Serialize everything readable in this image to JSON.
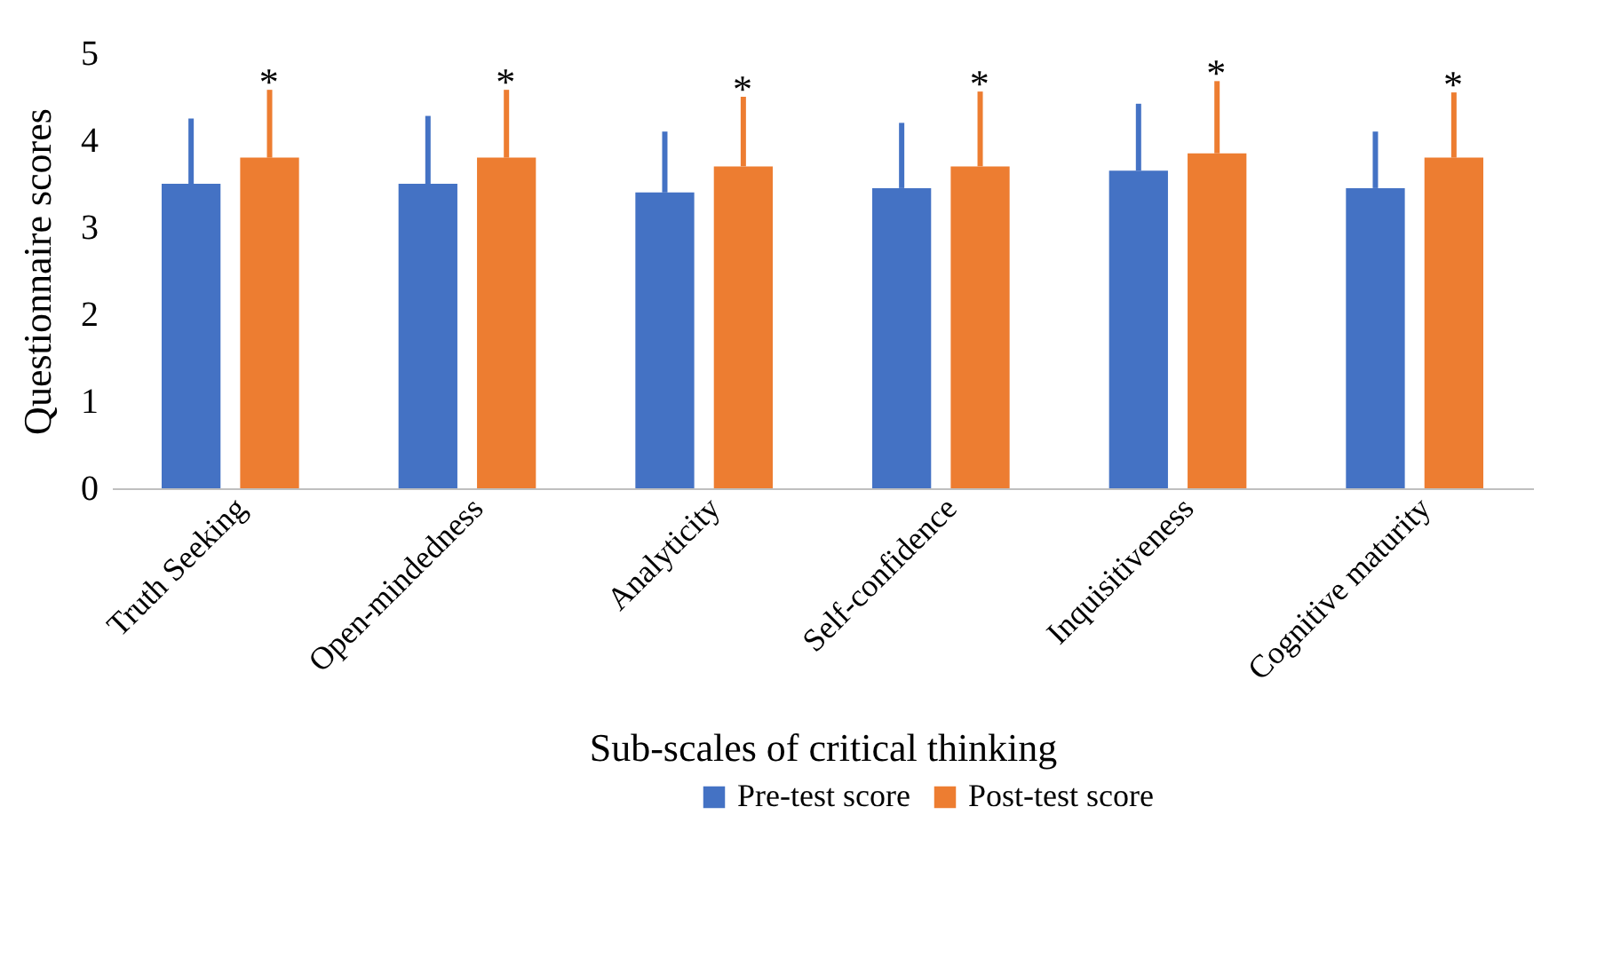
{
  "chart_data": {
    "type": "bar",
    "xlabel": "Sub-scales of critical thinking",
    "ylabel": "Questionnaire  scores",
    "categories": [
      "Truth Seeking",
      "Open-mindedness",
      "Analyticity",
      "Self-confidence",
      "Inquisitiveness",
      "Cognitive maturity"
    ],
    "series": [
      {
        "name": "Pre-test score",
        "color": "#4472c4",
        "values": [
          3.5,
          3.5,
          3.4,
          3.45,
          3.65,
          3.45
        ],
        "errors": [
          [
            3.5,
            4.25
          ],
          [
            3.5,
            4.28
          ],
          [
            3.4,
            4.1
          ],
          [
            3.45,
            4.2
          ],
          [
            3.65,
            4.42
          ],
          [
            3.45,
            4.1
          ]
        ]
      },
      {
        "name": "Post-test score",
        "color": "#ed7d31",
        "values": [
          3.8,
          3.8,
          3.7,
          3.7,
          3.85,
          3.8
        ],
        "errors": [
          [
            3.8,
            4.58
          ],
          [
            3.8,
            4.58
          ],
          [
            3.7,
            4.5
          ],
          [
            3.7,
            4.56
          ],
          [
            3.85,
            4.68
          ],
          [
            3.8,
            4.55
          ]
        ]
      }
    ],
    "ylim": [
      0,
      5
    ],
    "yticks": [
      0,
      1,
      2,
      3,
      4,
      5
    ],
    "grid": false,
    "legend": "bottom",
    "annotations": [
      "*",
      "*",
      "*",
      "*",
      "*",
      "*"
    ]
  }
}
